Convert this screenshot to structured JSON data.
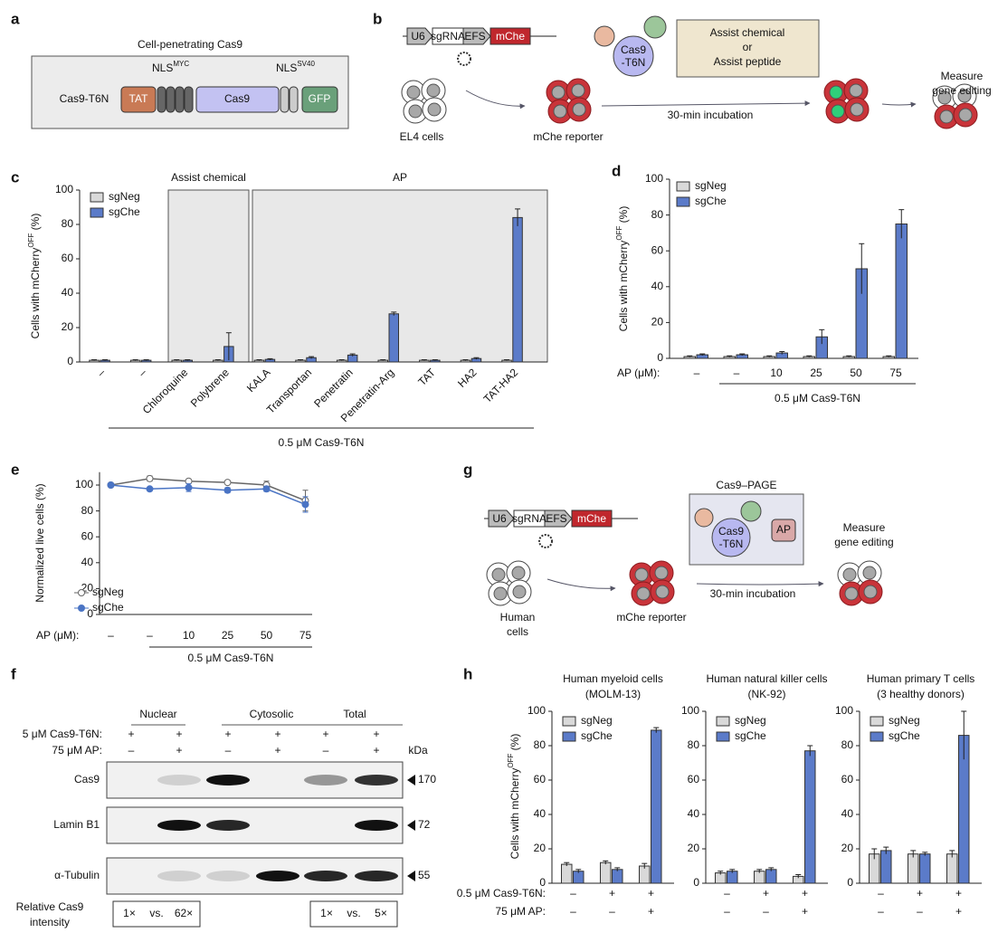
{
  "panel_labels": [
    "a",
    "b",
    "c",
    "d",
    "e",
    "f",
    "g",
    "h"
  ],
  "panel_a": {
    "title": "Cell-penetrating Cas9",
    "construct": "Cas9-T6N",
    "nls": [
      [
        "NLS",
        "MYC"
      ],
      [
        "NLS",
        "SV40"
      ]
    ],
    "domains": [
      "TAT",
      "Cas9",
      "GFP"
    ]
  },
  "panel_b": {
    "construct": [
      "U6",
      "sgRNA",
      "EFS",
      "mChe"
    ],
    "cells_label": "EL4 cells",
    "reporter_label": "mChe reporter",
    "protein": [
      "Cas9",
      "-T6N"
    ],
    "assist": [
      "Assist chemical",
      "or",
      "Assist peptide"
    ],
    "incubation": "30-min incubation",
    "readout": [
      "Measure",
      "gene editing"
    ]
  },
  "panel_g": {
    "construct": [
      "U6",
      "sgRNA",
      "EFS",
      "mChe"
    ],
    "cells_label": [
      "Human",
      "cells"
    ],
    "reporter_label": "mChe reporter",
    "complex": "Cas9–PAGE",
    "protein": [
      "Cas9",
      "-T6N"
    ],
    "peptide": "AP",
    "incubation": "30-min incubation",
    "readout": [
      "Measure",
      "gene editing"
    ]
  },
  "panel_f": {
    "fractions": [
      "Nuclear",
      "Cytosolic",
      "Total"
    ],
    "row_labels": [
      "5 μM Cas9-T6N:",
      "75 μM AP:"
    ],
    "conditions": [
      [
        "+",
        "+",
        "+",
        "+",
        "+",
        "+"
      ],
      [
        "–",
        "+",
        "–",
        "+",
        "–",
        "+"
      ]
    ],
    "unit": "kDa",
    "blots": [
      {
        "name": "Cas9",
        "marker": "170"
      },
      {
        "name": "Lamin B1",
        "marker": "72"
      },
      {
        "name": "α-Tubulin",
        "marker": "55"
      }
    ],
    "intensity_label": [
      "Relative Cas9",
      "intensity"
    ],
    "intensity": [
      [
        "1×",
        "vs.",
        "62×"
      ],
      [
        "1×",
        "vs.",
        "5×"
      ]
    ]
  },
  "panel_h": {
    "row_labels": [
      "0.5 μM Cas9-T6N:",
      "75 μM AP:"
    ]
  },
  "chart_data": [
    {
      "type": "bar",
      "regions": [
        "Assist chemical",
        "AP"
      ],
      "categories": [
        "–",
        "–",
        "Chloroquine",
        "Polybrene",
        "KALA",
        "Transportan",
        "Penetratin",
        "Penetratin-Arg",
        "TAT",
        "HA2",
        "TAT-HA2"
      ],
      "series": [
        {
          "name": "sgNeg",
          "color": "#d9d9d9",
          "values": [
            1,
            1,
            1,
            1,
            1,
            1,
            1,
            1,
            1,
            1,
            1
          ],
          "errors": [
            0.3,
            0.3,
            0.3,
            0.3,
            0.3,
            0.3,
            0.3,
            0.3,
            0.3,
            0.3,
            0.3
          ]
        },
        {
          "name": "sgChe",
          "color": "#5b7bc9",
          "values": [
            1,
            1,
            1,
            9,
            1.5,
            2.5,
            4,
            28,
            1,
            2,
            84
          ],
          "errors": [
            0.3,
            0.3,
            0.3,
            8,
            0.4,
            0.6,
            0.7,
            1,
            0.3,
            0.5,
            5
          ]
        }
      ],
      "ylim": [
        0,
        100
      ],
      "yticks": [
        0,
        20,
        40,
        60,
        80,
        100
      ],
      "y_label": [
        "Cells with mCherry",
        "OFF",
        " (%)"
      ],
      "legend": "upper left",
      "group_label": "0.5 μM Cas9-T6N"
    },
    {
      "type": "bar",
      "categories": [
        "–",
        "–",
        "10",
        "25",
        "50",
        "75"
      ],
      "x_label": "AP (μM):",
      "group_label": "0.5 μM Cas9-T6N",
      "series": [
        {
          "name": "sgNeg",
          "color": "#d9d9d9",
          "values": [
            1,
            1,
            1,
            1,
            1,
            1
          ],
          "errors": [
            0.4,
            0.4,
            0.4,
            0.4,
            0.4,
            0.4
          ]
        },
        {
          "name": "sgChe",
          "color": "#5b7bc9",
          "values": [
            2,
            2,
            3,
            12,
            50,
            75
          ],
          "errors": [
            0.5,
            0.5,
            0.8,
            4,
            14,
            8
          ]
        }
      ],
      "ylim": [
        0,
        100
      ],
      "yticks": [
        0,
        20,
        40,
        60,
        80,
        100
      ],
      "y_label": [
        "Cells with mCherry",
        "OFF",
        " (%)"
      ],
      "legend": "upper left"
    },
    {
      "type": "line",
      "categories": [
        "–",
        "–",
        "10",
        "25",
        "50",
        "75"
      ],
      "x_label": "AP (μM):",
      "group_label": "0.5 μM Cas9-T6N",
      "series": [
        {
          "name": "sgNeg",
          "color": "#666666",
          "values": [
            100,
            105,
            103,
            102,
            100,
            88
          ],
          "errors": [
            1,
            2,
            1,
            1,
            3,
            8
          ]
        },
        {
          "name": "sgChe",
          "color": "#4a74c4",
          "values": [
            100,
            97,
            98,
            96,
            97,
            85
          ],
          "errors": [
            1,
            1,
            3,
            2,
            2,
            6
          ]
        }
      ],
      "ylim": [
        0,
        110
      ],
      "yticks": [
        0,
        20,
        40,
        60,
        80,
        100
      ],
      "y_label": [
        "Normalized live cells (%)"
      ],
      "legend": "lower left"
    },
    {
      "type": "bar",
      "title": [
        "Human myeloid cells",
        "(MOLM-13)"
      ],
      "conditions": [
        [
          "–",
          "+",
          "+"
        ],
        [
          "–",
          "–",
          "+"
        ]
      ],
      "series": [
        {
          "name": "sgNeg",
          "color": "#d9d9d9",
          "values": [
            11,
            12,
            10
          ],
          "errors": [
            1,
            1,
            1.5
          ]
        },
        {
          "name": "sgChe",
          "color": "#5b7bc9",
          "values": [
            7,
            8,
            89
          ],
          "errors": [
            1,
            1,
            1.5
          ]
        }
      ],
      "ylim": [
        0,
        100
      ],
      "yticks": [
        0,
        20,
        40,
        60,
        80,
        100
      ],
      "y_label": [
        "Cells with mCherry",
        "OFF",
        " (%)"
      ],
      "legend": "upper left"
    },
    {
      "type": "bar",
      "title": [
        "Human natural killer cells",
        "(NK-92)"
      ],
      "conditions": [
        [
          "–",
          "+",
          "+"
        ],
        [
          "–",
          "–",
          "+"
        ]
      ],
      "series": [
        {
          "name": "sgNeg",
          "color": "#d9d9d9",
          "values": [
            6,
            7,
            4
          ],
          "errors": [
            1,
            1,
            1
          ]
        },
        {
          "name": "sgChe",
          "color": "#5b7bc9",
          "values": [
            7,
            8,
            77
          ],
          "errors": [
            1,
            1,
            3
          ]
        }
      ],
      "ylim": [
        0,
        100
      ],
      "yticks": [
        0,
        20,
        40,
        60,
        80,
        100
      ],
      "legend": "upper left"
    },
    {
      "type": "bar",
      "title": [
        "Human primary T cells",
        "(3 healthy donors)"
      ],
      "conditions": [
        [
          "–",
          "+",
          "+"
        ],
        [
          "–",
          "–",
          "+"
        ]
      ],
      "series": [
        {
          "name": "sgNeg",
          "color": "#d9d9d9",
          "values": [
            17,
            17,
            17
          ],
          "errors": [
            3,
            2,
            2
          ]
        },
        {
          "name": "sgChe",
          "color": "#5b7bc9",
          "values": [
            19,
            17,
            86
          ],
          "errors": [
            2,
            1,
            14
          ]
        }
      ],
      "ylim": [
        0,
        100
      ],
      "yticks": [
        0,
        20,
        40,
        60,
        80,
        100
      ],
      "legend": "upper left"
    }
  ]
}
